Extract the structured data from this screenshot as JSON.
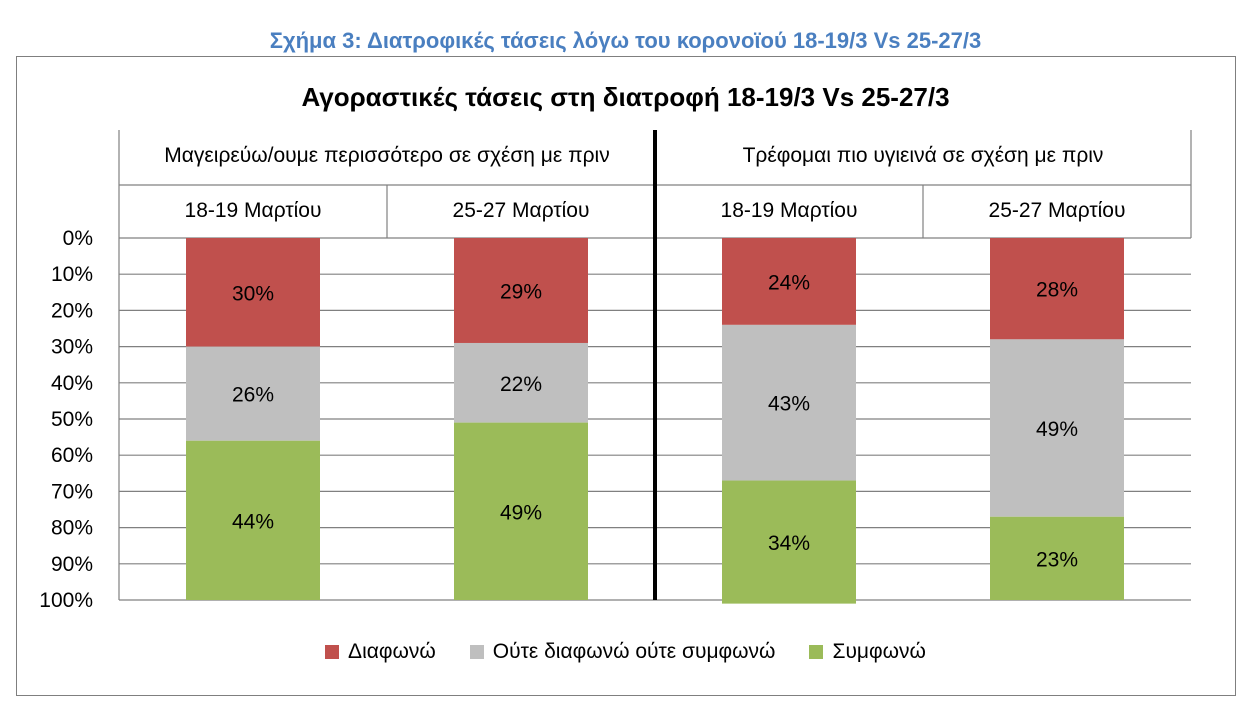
{
  "figure_caption": "Σχήμα 3: Διατροφικές τάσεις λόγω του κορονοϊού 18-19/3 Vs 25-27/3",
  "chart_data": {
    "type": "bar",
    "stacked": true,
    "orientation": "vertical",
    "y_reversed": true,
    "title": "Αγοραστικές τάσεις στη διατροφή 18-19/3 Vs 25-27/3",
    "groups": [
      {
        "label": "Μαγειρεύω/ουμε περισσότερο σε σχέση με πριν",
        "categories": [
          "18-19 Μαρτίου",
          "25-27 Μαρτίου"
        ]
      },
      {
        "label": "Τρέφομαι πιο υγιεινά σε σχέση με πριν",
        "categories": [
          "18-19 Μαρτίου",
          "25-27 Μαρτίου"
        ]
      }
    ],
    "categories": [
      "18-19 Μαρτίου",
      "25-27 Μαρτίου",
      "18-19 Μαρτίου",
      "25-27 Μαρτίου"
    ],
    "series": [
      {
        "name": "Διαφωνώ",
        "color": "#c0504d",
        "values": [
          30,
          29,
          24,
          28
        ],
        "labels": [
          "30%",
          "29%",
          "24%",
          "28%"
        ]
      },
      {
        "name": "Ούτε διαφωνώ ούτε συμφωνώ",
        "color": "#bfbfbf",
        "values": [
          26,
          22,
          43,
          49
        ],
        "labels": [
          "26%",
          "22%",
          "43%",
          "49%"
        ]
      },
      {
        "name": "Συμφωνώ",
        "color": "#9bbb59",
        "values": [
          44,
          49,
          34,
          23
        ],
        "labels": [
          "44%",
          "49%",
          "34%",
          "23%"
        ]
      }
    ],
    "ylim": [
      0,
      100
    ],
    "yticks": [
      "0%",
      "10%",
      "20%",
      "30%",
      "40%",
      "50%",
      "60%",
      "70%",
      "80%",
      "90%",
      "100%"
    ],
    "grid": true,
    "legend_position": "bottom"
  }
}
